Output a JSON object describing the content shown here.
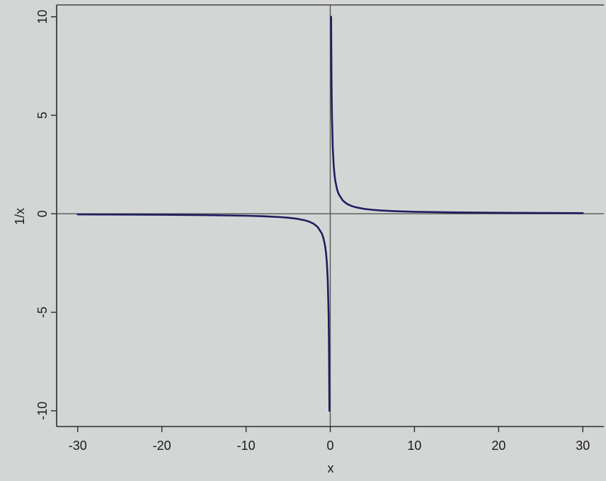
{
  "chart_data": {
    "type": "line",
    "title": "",
    "xlabel": "x",
    "ylabel": "1/x",
    "xlim": [
      -32.5,
      32.5
    ],
    "ylim": [
      -10.8,
      10.6
    ],
    "x_ticks": [
      -30,
      -20,
      -10,
      0,
      10,
      20,
      30
    ],
    "y_ticks": [
      -10,
      -5,
      0,
      5,
      10
    ],
    "x_tick_labels": [
      "-30",
      "-20",
      "-10",
      "0",
      "10",
      "20",
      "30"
    ],
    "y_tick_labels": [
      "-10",
      "-5",
      "0",
      "5",
      "10"
    ],
    "reference_lines": {
      "horizontal_y": 0,
      "vertical_x": 0
    },
    "grid": false,
    "series": [
      {
        "function": "1/x",
        "x": [
          -30,
          -25,
          -20,
          -15,
          -10,
          -8,
          -6,
          -5,
          -4,
          -3,
          -2.5,
          -2,
          -1.5,
          -1,
          -0.8,
          -0.6,
          -0.5,
          -0.4,
          -0.3,
          -0.2,
          -0.15,
          -0.1
        ],
        "y": [
          -0.033,
          -0.04,
          -0.05,
          -0.067,
          -0.1,
          -0.125,
          -0.167,
          -0.2,
          -0.25,
          -0.333,
          -0.4,
          -0.5,
          -0.667,
          -1,
          -1.25,
          -1.667,
          -2,
          -2.5,
          -3.333,
          -5,
          -6.667,
          -10
        ]
      },
      {
        "function": "1/x",
        "x": [
          0.1,
          0.15,
          0.2,
          0.3,
          0.4,
          0.5,
          0.6,
          0.8,
          1,
          1.5,
          2,
          2.5,
          3,
          4,
          5,
          6,
          8,
          10,
          15,
          20,
          25,
          30
        ],
        "y": [
          10,
          6.667,
          5,
          3.333,
          2.5,
          2,
          1.667,
          1.25,
          1,
          0.667,
          0.5,
          0.4,
          0.333,
          0.25,
          0.2,
          0.167,
          0.125,
          0.1,
          0.067,
          0.05,
          0.04,
          0.033
        ]
      }
    ],
    "colors": {
      "background": "#d4d6d6",
      "curve": "#1f1d5e",
      "axes": "#2b2b2b",
      "reference": "#555555"
    }
  }
}
